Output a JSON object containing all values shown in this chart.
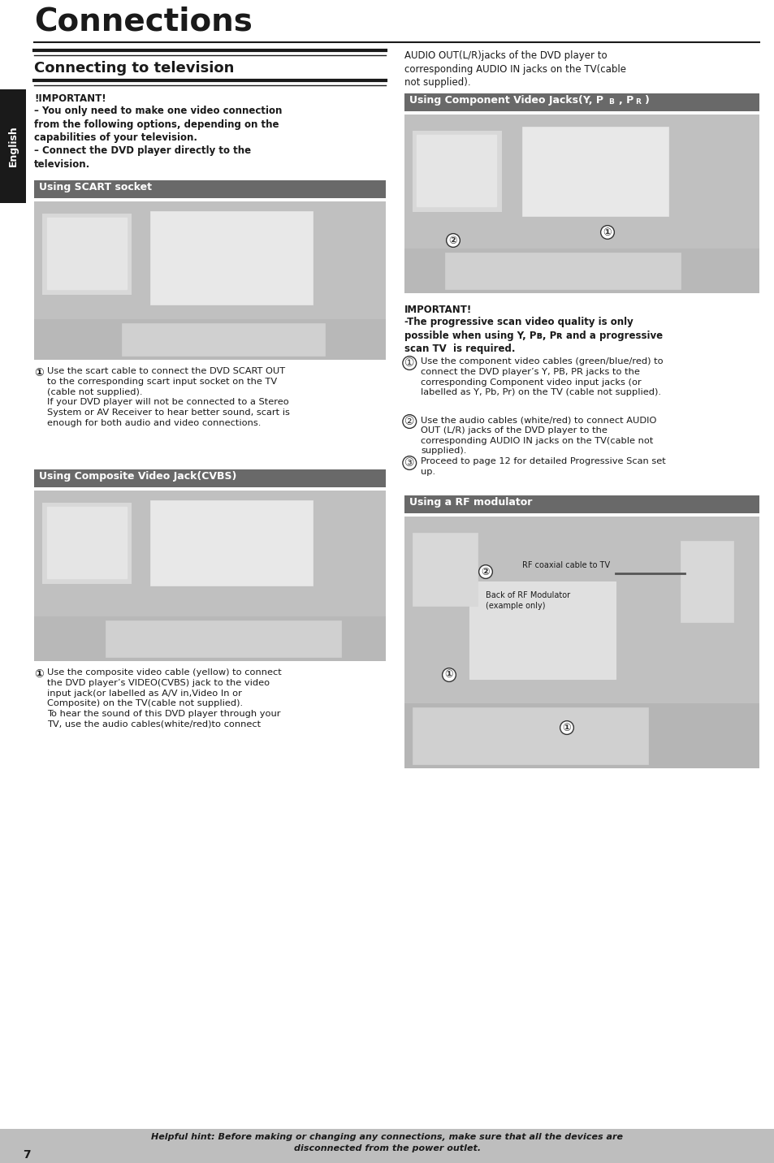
{
  "title": "Connections",
  "page_number": "7",
  "sidebar_text": "English",
  "background_color": "#ffffff",
  "sidebar_bg": "#1a1a1a",
  "sidebar_text_color": "#ffffff",
  "footer_bg": "#bebebe",
  "footer_text": "Helpful hint: Before making or changing any connections, make sure that all the devices are\ndisconnected from the power outlet.",
  "right_top_text": "AUDIO OUT(L/R)jacks of the DVD player to\ncorresponding AUDIO IN jacks on the TV(cable\nnot supplied).",
  "connecting_tv_important": "!IMPORTANT!",
  "connecting_tv_body": "– You only need to make one video connection\nfrom the following options, depending on the\ncapabilities of your television.\n– Connect the DVD player directly to the\ntelevision.",
  "scart_header": "Using SCART socket",
  "scart_header_bg": "#696969",
  "scart_body": "Use the scart cable to connect the DVD SCART OUT\nto the corresponding scart input socket on the TV\n(cable not supplied).\nIf your DVD player will not be connected to a Stereo\nSystem or AV Receiver to hear better sound, scart is\nenough for both audio and video connections.",
  "cvbs_header": "Using Composite Video Jack(CVBS)",
  "cvbs_header_bg": "#696969",
  "cvbs_body": "Use the composite video cable (yellow) to connect\nthe DVD player’s VIDEO(CVBS) jack to the video\ninput jack(or labelled as A/V in,Video In or\nComposite) on the TV(cable not supplied).\nTo hear the sound of this DVD player through your\nTV, use the audio cables(white/red)to connect",
  "component_header": "Using Component Video Jacks(Y, PB, PR)",
  "component_header_bg": "#696969",
  "component_important": "IMPORTANT!\n-The progressive scan video quality is only\npossible when using Y, PB, PR and a progressive\nscan TV  is required.",
  "component_body": "Use the component video cables (green/blue/red) to\nconnect the DVD player’s Y, PB, PR jacks to the\ncorresponding Component video input jacks (or\nlabelled as Y, Pb, Pr) on the TV (cable not supplied).\nUse the audio cables (white/red) to connect AUDIO\nOUT (L/R) jacks of the DVD player to the\ncorresponding AUDIO IN jacks on the TV(cable not\nsupplied).\nProceed to page 12 for detailed Progressive Scan set\nup.",
  "rf_header": "Using a RF modulator",
  "rf_header_bg": "#696969",
  "rf_label1": "RF coaxial cable to TV",
  "rf_label2": "Back of RF Modulator\n(example only)",
  "connecting_tv_header": "Connecting to television",
  "connecting_tv_header_bg": "#1a1a1a",
  "img_bg": "#c8c8c8",
  "img_inner_bg": "#d8d8d8",
  "img_device_bg": "#e8e8e8",
  "section_header_text_color": "#ffffff",
  "body_text_color": "#1a1a1a",
  "title_line_color": "#1a1a1a"
}
